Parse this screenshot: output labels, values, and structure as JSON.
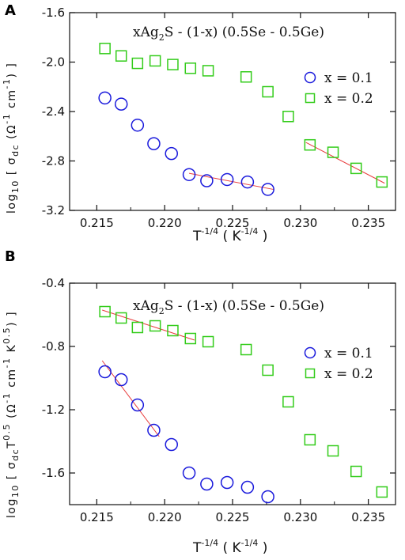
{
  "chart_data": [
    {
      "type": "scatter",
      "panel": "A",
      "title": "xAg",
      "title_sub": "2",
      "title_rest": "S - (1-x) (0.5Se - 0.5Ge)",
      "xlabel": {
        "base": "T",
        "sup": "-1/4",
        "open": " ( K",
        "sup2": "-1/4",
        "close": " )"
      },
      "ylabel": {
        "pre": "log",
        "sub1": "10",
        "mid": " [ σ",
        "sub2": "dc",
        "rest": " (Ω",
        "sup1": "-1",
        "rest2": " cm",
        "sup2": "-1",
        "close": ") ]"
      },
      "xlim": [
        0.213,
        0.237
      ],
      "ylim": [
        -3.2,
        -1.6
      ],
      "xticks": [
        0.215,
        0.22,
        0.225,
        0.23,
        0.235
      ],
      "xtick_labels": [
        "0.215",
        "0.220",
        "0.225",
        "0.230",
        "0.235"
      ],
      "yticks": [
        -1.6,
        -2.0,
        -2.4,
        -2.8,
        -3.2
      ],
      "ytick_labels": [
        "-1.6",
        "-2.0",
        "-2.4",
        "-2.8",
        "-3.2"
      ],
      "series": [
        {
          "name": "x = 0.1",
          "marker": "circle",
          "color": "#1a1adc",
          "x": [
            0.2156,
            0.2168,
            0.218,
            0.2192,
            0.2205,
            0.2218,
            0.2231,
            0.2246,
            0.2261,
            0.2276
          ],
          "y": [
            -2.29,
            -2.34,
            -2.51,
            -2.66,
            -2.74,
            -2.91,
            -2.96,
            -2.95,
            -2.97,
            -3.03
          ]
        },
        {
          "name": "x = 0.2",
          "marker": "square",
          "color": "#33cc1a",
          "x": [
            0.2156,
            0.2168,
            0.218,
            0.2193,
            0.2206,
            0.2219,
            0.2232,
            0.226,
            0.2276,
            0.2291,
            0.2307,
            0.2324,
            0.2341,
            0.236
          ],
          "y": [
            -1.89,
            -1.95,
            -2.01,
            -1.99,
            -2.02,
            -2.05,
            -2.07,
            -2.12,
            -2.24,
            -2.44,
            -2.67,
            -2.73,
            -2.86,
            -2.97
          ]
        }
      ],
      "fit_lines": [
        {
          "color": "#e83a3a",
          "x": [
            0.2218,
            0.228
          ],
          "y": [
            -2.9,
            -3.03
          ]
        },
        {
          "color": "#e83a3a",
          "x": [
            0.2304,
            0.2362
          ],
          "y": [
            -2.65,
            -2.98
          ]
        }
      ]
    },
    {
      "type": "scatter",
      "panel": "B",
      "title": "xAg",
      "title_sub": "2",
      "title_rest": "S - (1-x) (0.5Se - 0.5Ge)",
      "xlabel": {
        "base": "T",
        "sup": "-1/4",
        "open": " ( K",
        "sup2": "-1/4",
        "close": " )"
      },
      "ylabel": {
        "pre": "log",
        "sub1": "10",
        "mid": " [ σ",
        "sub2": "dc",
        "t": "T",
        "sup0": "0.5",
        "rest": " (Ω",
        "sup1": "-1",
        "rest2": " cm",
        "sup2": "-1",
        "rest3": " K",
        "sup3": "0.5",
        "close": ") ]"
      },
      "xlim": [
        0.213,
        0.237
      ],
      "ylim": [
        -1.8,
        -0.4
      ],
      "xticks": [
        0.215,
        0.22,
        0.225,
        0.23,
        0.235
      ],
      "xtick_labels": [
        "0.215",
        "0.220",
        "0.225",
        "0.230",
        "0.235"
      ],
      "yticks": [
        -0.4,
        -0.8,
        -1.2,
        -1.6
      ],
      "ytick_labels": [
        "-0.4",
        "-0.8",
        "-1.2",
        "-1.6"
      ],
      "series": [
        {
          "name": "x = 0.1",
          "marker": "circle",
          "color": "#1a1adc",
          "x": [
            0.2156,
            0.2168,
            0.218,
            0.2192,
            0.2205,
            0.2218,
            0.2231,
            0.2246,
            0.2261,
            0.2276
          ],
          "y": [
            -0.96,
            -1.01,
            -1.17,
            -1.33,
            -1.42,
            -1.6,
            -1.67,
            -1.66,
            -1.69,
            -1.75
          ]
        },
        {
          "name": "x = 0.2",
          "marker": "square",
          "color": "#33cc1a",
          "x": [
            0.2156,
            0.2168,
            0.218,
            0.2193,
            0.2206,
            0.2219,
            0.2232,
            0.226,
            0.2276,
            0.2291,
            0.2307,
            0.2324,
            0.2341,
            0.236
          ],
          "y": [
            -0.58,
            -0.62,
            -0.68,
            -0.67,
            -0.7,
            -0.75,
            -0.77,
            -0.82,
            -0.95,
            -1.15,
            -1.39,
            -1.46,
            -1.59,
            -1.72
          ]
        }
      ],
      "fit_lines": [
        {
          "color": "#e83a3a",
          "x": [
            0.2154,
            0.2222
          ],
          "y": [
            -0.57,
            -0.76
          ]
        },
        {
          "color": "#e83a3a",
          "x": [
            0.2154,
            0.2196
          ],
          "y": [
            -0.89,
            -1.37
          ]
        }
      ]
    }
  ]
}
